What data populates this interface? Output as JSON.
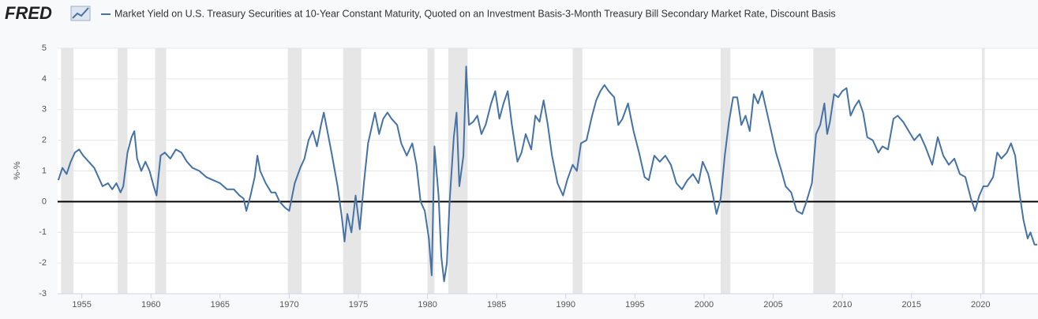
{
  "brand": "FRED",
  "chart_data": {
    "type": "line",
    "title": "Market Yield on U.S. Treasury Securities at 10-Year Constant Maturity, Quoted on an Investment Basis-3-Month Treasury Bill Secondary Market Rate, Discount Basis",
    "y_label": "%-%",
    "xlim": [
      1953.25,
      2024.15
    ],
    "xticks": [
      1955,
      1960,
      1965,
      1970,
      1975,
      1980,
      1985,
      1990,
      1995,
      2000,
      2005,
      2010,
      2015,
      2020
    ],
    "ylim": [
      -3,
      5
    ],
    "yticks": [
      -3,
      -2,
      -1,
      0,
      1,
      2,
      3,
      4,
      5
    ],
    "grid": true,
    "zero_line": true,
    "recessions": [
      [
        1953.5,
        1954.4
      ],
      [
        1957.6,
        1958.3
      ],
      [
        1960.3,
        1961.1
      ],
      [
        1969.9,
        1970.9
      ],
      [
        1973.9,
        1975.2
      ],
      [
        1980.0,
        1980.5
      ],
      [
        1981.5,
        1982.9
      ],
      [
        1990.5,
        1991.2
      ],
      [
        2001.2,
        2001.9
      ],
      [
        2007.9,
        2009.5
      ],
      [
        2020.1,
        2020.3
      ]
    ],
    "recession_color": "#e6e6e6",
    "series": [
      {
        "name": "Market Yield on U.S. Treasury Securities at 10-Year Constant Maturity, Quoted on an Investment Basis-3-Month Treasury Bill Secondary Market Rate, Discount Basis",
        "color": "#4572a7",
        "x": [
          1953.3,
          1953.6,
          1953.9,
          1954.2,
          1954.5,
          1954.8,
          1955.1,
          1955.5,
          1955.9,
          1956.2,
          1956.5,
          1956.9,
          1957.2,
          1957.5,
          1957.8,
          1958.0,
          1958.3,
          1958.6,
          1958.8,
          1959.0,
          1959.3,
          1959.6,
          1959.9,
          1960.2,
          1960.4,
          1960.7,
          1961.0,
          1961.4,
          1961.8,
          1962.2,
          1962.6,
          1963.0,
          1963.5,
          1964.0,
          1964.5,
          1965.0,
          1965.5,
          1966.0,
          1966.4,
          1966.7,
          1966.9,
          1967.2,
          1967.5,
          1967.7,
          1967.9,
          1968.3,
          1968.7,
          1969.0,
          1969.3,
          1969.7,
          1970.0,
          1970.4,
          1970.8,
          1971.1,
          1971.4,
          1971.7,
          1972.0,
          1972.3,
          1972.5,
          1972.8,
          1973.1,
          1973.5,
          1973.8,
          1974.0,
          1974.2,
          1974.5,
          1974.8,
          1975.1,
          1975.4,
          1975.7,
          1976.0,
          1976.2,
          1976.5,
          1976.8,
          1977.1,
          1977.4,
          1977.8,
          1978.1,
          1978.5,
          1978.9,
          1979.2,
          1979.5,
          1979.8,
          1980.1,
          1980.3,
          1980.5,
          1980.8,
          1981.0,
          1981.2,
          1981.4,
          1981.6,
          1981.9,
          1982.1,
          1982.3,
          1982.6,
          1982.8,
          1983.0,
          1983.3,
          1983.6,
          1983.9,
          1984.2,
          1984.6,
          1984.9,
          1985.2,
          1985.5,
          1985.8,
          1986.1,
          1986.5,
          1986.8,
          1987.1,
          1987.5,
          1987.8,
          1988.1,
          1988.4,
          1988.7,
          1989.0,
          1989.4,
          1989.8,
          1990.1,
          1990.5,
          1990.8,
          1991.1,
          1991.5,
          1991.9,
          1992.2,
          1992.5,
          1992.8,
          1993.1,
          1993.5,
          1993.8,
          1994.1,
          1994.5,
          1994.9,
          1995.3,
          1995.7,
          1996.0,
          1996.4,
          1996.8,
          1997.2,
          1997.6,
          1998.0,
          1998.4,
          1998.8,
          1999.2,
          1999.6,
          1999.9,
          2000.3,
          2000.6,
          2000.9,
          2001.2,
          2001.5,
          2001.8,
          2002.1,
          2002.4,
          2002.7,
          2003.0,
          2003.3,
          2003.6,
          2003.9,
          2004.2,
          2004.5,
          2004.9,
          2005.2,
          2005.6,
          2005.9,
          2006.3,
          2006.7,
          2007.1,
          2007.4,
          2007.8,
          2008.1,
          2008.4,
          2008.7,
          2008.9,
          2009.1,
          2009.4,
          2009.7,
          2010.0,
          2010.3,
          2010.6,
          2010.9,
          2011.2,
          2011.5,
          2011.8,
          2012.2,
          2012.6,
          2012.9,
          2013.3,
          2013.7,
          2014.0,
          2014.4,
          2014.8,
          2015.2,
          2015.6,
          2016.0,
          2016.5,
          2016.9,
          2017.3,
          2017.7,
          2018.1,
          2018.5,
          2018.9,
          2019.3,
          2019.6,
          2019.9,
          2020.2,
          2020.5,
          2020.9,
          2021.2,
          2021.5,
          2021.9,
          2022.2,
          2022.5,
          2022.8,
          2023.1,
          2023.4,
          2023.6,
          2023.9,
          2024.1
        ],
        "values": [
          0.7,
          1.1,
          0.9,
          1.3,
          1.6,
          1.7,
          1.5,
          1.3,
          1.1,
          0.8,
          0.5,
          0.6,
          0.4,
          0.6,
          0.3,
          0.5,
          1.6,
          2.1,
          2.3,
          1.4,
          1.0,
          1.3,
          1.0,
          0.5,
          0.2,
          1.5,
          1.6,
          1.4,
          1.7,
          1.6,
          1.3,
          1.1,
          1.0,
          0.8,
          0.7,
          0.6,
          0.4,
          0.4,
          0.2,
          0.1,
          -0.3,
          0.2,
          0.8,
          1.5,
          1.0,
          0.6,
          0.3,
          0.3,
          0.0,
          -0.2,
          -0.3,
          0.6,
          1.1,
          1.4,
          2.0,
          2.3,
          1.8,
          2.5,
          2.9,
          2.2,
          1.5,
          0.5,
          -0.5,
          -1.3,
          -0.4,
          -1.0,
          0.2,
          -0.9,
          0.6,
          1.9,
          2.5,
          2.9,
          2.2,
          2.7,
          2.9,
          2.7,
          2.5,
          1.9,
          1.5,
          1.9,
          1.2,
          0.0,
          -0.3,
          -1.2,
          -2.4,
          1.8,
          0.2,
          -1.8,
          -2.6,
          -2.0,
          0.0,
          2.1,
          2.9,
          0.5,
          1.5,
          4.4,
          2.5,
          2.6,
          2.8,
          2.2,
          2.5,
          3.2,
          3.6,
          2.7,
          3.2,
          3.6,
          2.5,
          1.3,
          1.6,
          2.2,
          1.7,
          2.8,
          2.6,
          3.3,
          2.5,
          1.5,
          0.6,
          0.2,
          0.7,
          1.2,
          1.0,
          1.9,
          2.0,
          2.8,
          3.3,
          3.6,
          3.8,
          3.6,
          3.4,
          2.5,
          2.7,
          3.2,
          2.3,
          1.6,
          0.8,
          0.7,
          1.5,
          1.3,
          1.5,
          1.2,
          0.6,
          0.4,
          0.7,
          0.9,
          0.6,
          1.3,
          0.9,
          0.3,
          -0.4,
          0.1,
          1.5,
          2.6,
          3.4,
          3.4,
          2.5,
          2.8,
          2.3,
          3.5,
          3.2,
          3.6,
          3.0,
          2.2,
          1.6,
          1.0,
          0.5,
          0.3,
          -0.3,
          -0.4,
          0.0,
          0.6,
          2.2,
          2.5,
          3.2,
          2.2,
          2.6,
          3.5,
          3.4,
          3.6,
          3.7,
          2.8,
          3.1,
          3.3,
          2.9,
          2.1,
          2.0,
          1.6,
          1.8,
          1.7,
          2.7,
          2.8,
          2.6,
          2.3,
          2.0,
          2.2,
          1.8,
          1.2,
          2.1,
          1.5,
          1.2,
          1.4,
          0.9,
          0.8,
          0.1,
          -0.3,
          0.2,
          0.5,
          0.5,
          0.8,
          1.6,
          1.4,
          1.6,
          1.9,
          1.5,
          0.3,
          -0.6,
          -1.2,
          -1.0,
          -1.4,
          -1.4
        ]
      }
    ]
  }
}
